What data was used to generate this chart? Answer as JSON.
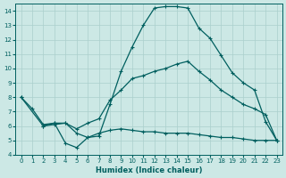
{
  "xlabel": "Humidex (Indice chaleur)",
  "background_color": "#cce8e5",
  "grid_color": "#aacfcc",
  "line_color": "#005f5f",
  "xlim": [
    -0.5,
    23.5
  ],
  "ylim": [
    4,
    14.5
  ],
  "xticks": [
    0,
    1,
    2,
    3,
    4,
    5,
    6,
    7,
    8,
    9,
    10,
    11,
    12,
    13,
    14,
    15,
    16,
    17,
    18,
    19,
    20,
    21,
    22,
    23
  ],
  "yticks": [
    4,
    5,
    6,
    7,
    8,
    9,
    10,
    11,
    12,
    13,
    14
  ],
  "curve_upper_x": [
    0,
    1,
    2,
    3,
    4,
    5,
    6,
    7,
    8,
    9,
    10,
    11,
    12,
    13,
    14,
    15,
    16,
    17,
    18,
    19,
    20,
    21,
    22,
    23
  ],
  "curve_upper_y": [
    8,
    7.2,
    6.1,
    6.2,
    4.8,
    4.5,
    5.2,
    5.3,
    7.5,
    9.8,
    11.5,
    13.0,
    14.2,
    14.3,
    14.3,
    14.2,
    12.8,
    12.1,
    10.9,
    9.7,
    9.0,
    8.5,
    6.3,
    5.0
  ],
  "curve_lower_x": [
    0,
    2,
    3,
    4,
    5,
    6,
    7,
    8,
    9,
    10,
    11,
    12,
    13,
    14,
    15,
    16,
    17,
    18,
    19,
    20,
    21,
    22,
    23
  ],
  "curve_lower_y": [
    8,
    6.0,
    6.2,
    6.2,
    5.8,
    6.2,
    6.5,
    7.8,
    8.5,
    9.3,
    9.5,
    9.8,
    10.0,
    10.3,
    10.5,
    9.8,
    9.2,
    8.5,
    8.0,
    7.5,
    7.2,
    6.8,
    5.0
  ],
  "curve_flat_x": [
    2,
    3,
    4,
    5,
    6,
    7,
    8,
    9,
    10,
    11,
    12,
    13,
    14,
    15,
    16,
    17,
    18,
    19,
    20,
    21,
    22,
    23
  ],
  "curve_flat_y": [
    6.0,
    6.1,
    6.2,
    5.5,
    5.2,
    5.5,
    5.7,
    5.8,
    5.7,
    5.6,
    5.6,
    5.5,
    5.5,
    5.5,
    5.4,
    5.3,
    5.2,
    5.2,
    5.1,
    5.0,
    5.0,
    5.0
  ]
}
